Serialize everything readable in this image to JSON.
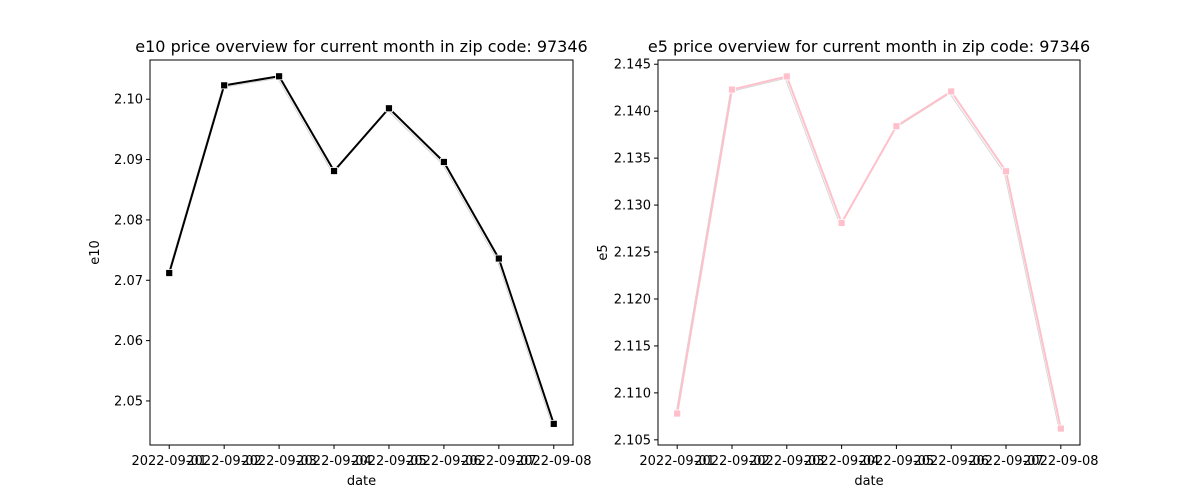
{
  "chart_data": [
    {
      "type": "line",
      "title": "e10 price overview for current month in zip code: 97346",
      "xlabel": "date",
      "ylabel": "e10",
      "x": [
        "2022-09-01",
        "2022-09-02",
        "2022-09-03",
        "2022-09-04",
        "2022-09-05",
        "2022-09-06",
        "2022-09-07",
        "2022-09-08"
      ],
      "xtick_labels": [
        "2022-09-01",
        "2022-09-02",
        "2022-09-03",
        "2022-09-04",
        "2022-09-05",
        "2022-09-06",
        "2022-09-07",
        "2022-09-08"
      ],
      "ylim": [
        2.0427,
        2.1065
      ],
      "yticks": [
        2.05,
        2.06,
        2.07,
        2.08,
        2.09,
        2.1
      ],
      "ytick_labels": [
        "2.05",
        "2.06",
        "2.07",
        "2.08",
        "2.09",
        "2.10"
      ],
      "series": [
        {
          "values": [
            2.0712,
            2.1023,
            2.1038,
            2.0881,
            2.0985,
            2.0896,
            2.0736,
            2.0462
          ],
          "color": "#000000",
          "marker": "square"
        }
      ],
      "grid": false
    },
    {
      "type": "line",
      "title": "e5 price overview for current month in zip code: 97346",
      "xlabel": "date",
      "ylabel": "e5",
      "x": [
        "2022-09-01",
        "2022-09-02",
        "2022-09-03",
        "2022-09-04",
        "2022-09-05",
        "2022-09-06",
        "2022-09-07",
        "2022-09-08"
      ],
      "xtick_labels": [
        "2022-09-01",
        "2022-09-02",
        "2022-09-03",
        "2022-09-04",
        "2022-09-05",
        "2022-09-06",
        "2022-09-07",
        "2022-09-08"
      ],
      "ylim": [
        2.10445,
        2.14545
      ],
      "yticks": [
        2.105,
        2.11,
        2.115,
        2.12,
        2.125,
        2.13,
        2.135,
        2.14,
        2.145
      ],
      "ytick_labels": [
        "2.105",
        "2.110",
        "2.115",
        "2.120",
        "2.125",
        "2.130",
        "2.135",
        "2.140",
        "2.145"
      ],
      "series": [
        {
          "values": [
            2.1078,
            2.1423,
            2.1437,
            2.1281,
            2.1384,
            2.1421,
            2.1336,
            2.1062
          ],
          "color": "#ffc0cb",
          "marker": "square"
        }
      ],
      "grid": false
    }
  ]
}
